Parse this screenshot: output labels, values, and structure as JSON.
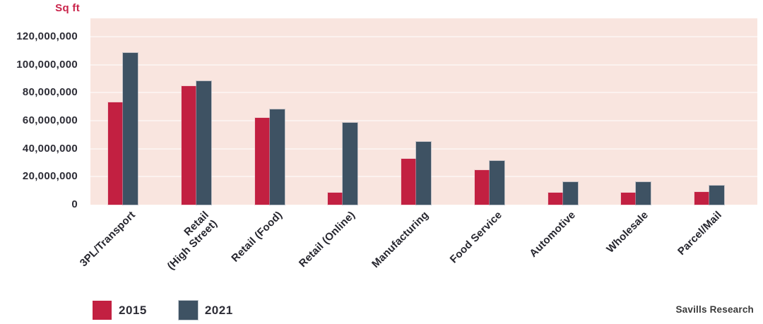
{
  "chart_data": {
    "type": "bar",
    "title": "",
    "ylabel": "Sq ft",
    "xlabel": "",
    "categories": [
      "3PL/Transport",
      "Retail\n(High Street)",
      "Retail (Food)",
      "Retail (Online)",
      "Manufacturing",
      "Food Service",
      "Automotive",
      "Wholesale",
      "Parcel/Mail"
    ],
    "series": [
      {
        "name": "2015",
        "color": "#c22041",
        "values": [
          73000000,
          84500000,
          62000000,
          8500000,
          33000000,
          24500000,
          8700000,
          8700000,
          9000000
        ]
      },
      {
        "name": "2021",
        "color": "#3e5263",
        "values": [
          108500000,
          88000000,
          68000000,
          58500000,
          45000000,
          31000000,
          16300000,
          16300000,
          13500000
        ]
      }
    ],
    "ylim": [
      0,
      133000000
    ],
    "yticks": [
      {
        "value": 0,
        "label": "0"
      },
      {
        "value": 20000000,
        "label": "20,000,000"
      },
      {
        "value": 40000000,
        "label": "40,000,000"
      },
      {
        "value": 60000000,
        "label": "60,000,000"
      },
      {
        "value": 80000000,
        "label": "80,000,000"
      },
      {
        "value": 100000000,
        "label": "100,000,000"
      },
      {
        "value": 120000000,
        "label": "120,000,000"
      }
    ],
    "grid": true,
    "legend_position": "bottom-left",
    "colors": {
      "plot_background": "#f9e5df",
      "gridline": "#fcf2ef",
      "axis_text": "#2d2d36",
      "y_unit_label": "#c9234a"
    }
  },
  "footer": {
    "source": "Savills Research"
  }
}
